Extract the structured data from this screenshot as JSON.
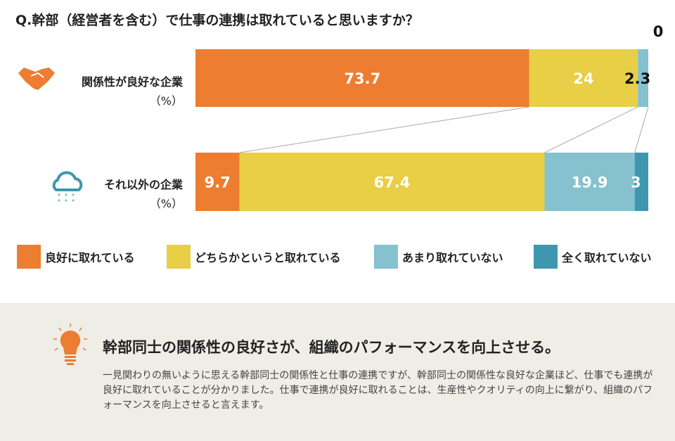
{
  "chart_data": {
    "type": "bar",
    "orientation": "horizontal-stacked-100",
    "title": "Q.幹部（経営者を含む）で仕事の連携は取れていると思いますか？",
    "categories": [
      "関係性が良好な企業",
      "それ以外の企業"
    ],
    "unit_label": "（%）",
    "series": [
      {
        "name": "良好に取れている",
        "color": "#ED7D31",
        "values": [
          73.7,
          9.7
        ]
      },
      {
        "name": "どちらかというと取れている",
        "color": "#E8CF45",
        "values": [
          24,
          67.4
        ]
      },
      {
        "name": "あまり取れていない",
        "color": "#85C1CF",
        "values": [
          2.3,
          19.9
        ]
      },
      {
        "name": "全く取れていない",
        "color": "#3E97AE",
        "values": [
          0,
          3
        ]
      }
    ],
    "legend": "bottom"
  },
  "summary": {
    "headline": "幹部同士の関係性の良好さが、組織のパフォーマンスを向上させる。",
    "body": "一見関わりの無いように思える幹部同士の関係性と仕事の連携ですが、幹部同士の関係性な良好な企業ほど、仕事でも連携が良好に取れていることが分かりました。仕事で連携が良好に取れることは、生産性やクオリティの向上に繋がり、組織のパフォーマンスを向上させると言えます。"
  }
}
